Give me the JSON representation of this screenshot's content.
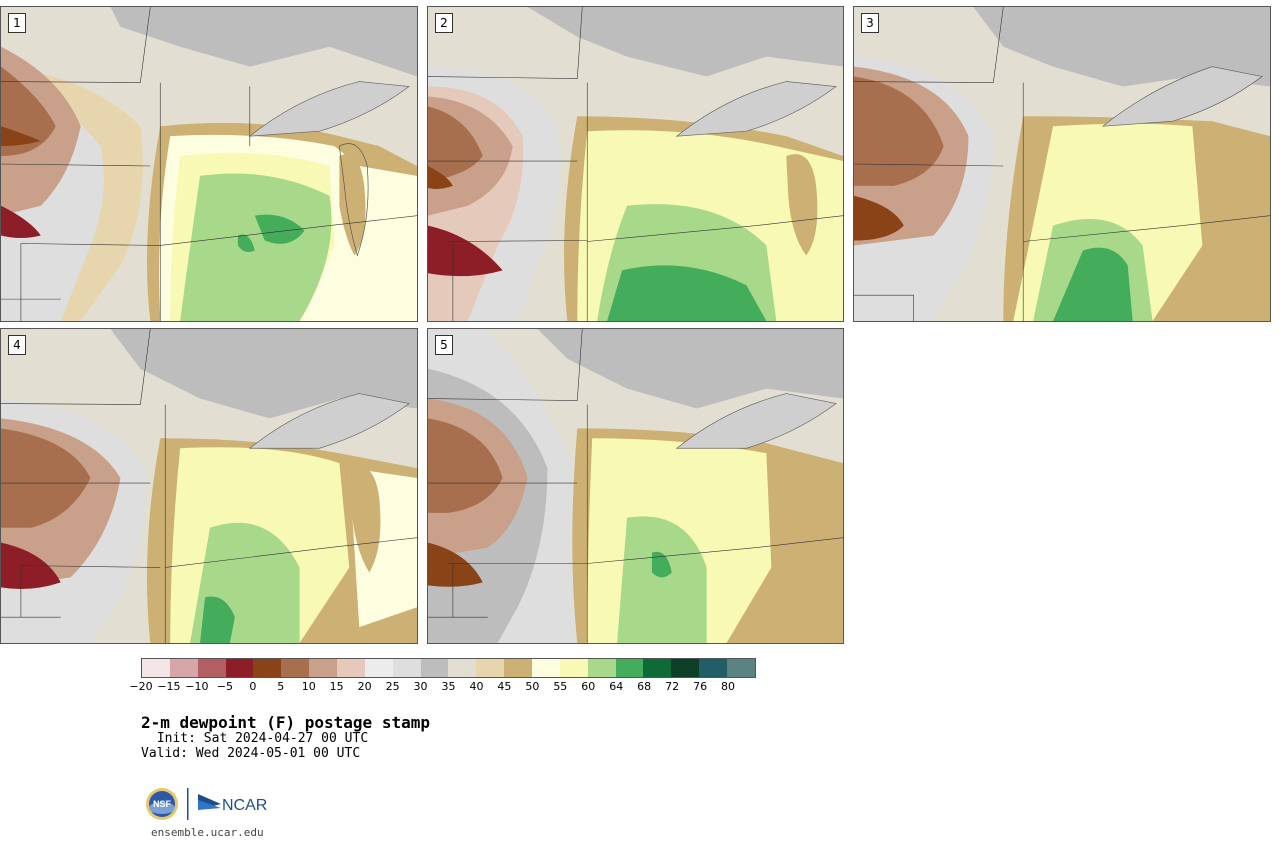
{
  "title": "2-m dewpoint (F) postage stamp",
  "init_line": " Init: Sat 2024-04-27 00 UTC",
  "valid_line": "Valid: Wed 2024-05-01 00 UTC",
  "site": "ensemble.ucar.edu",
  "logos": {
    "nsf": "NSF",
    "ncar": "NCAR"
  },
  "panels": [
    {
      "label": "1"
    },
    {
      "label": "2"
    },
    {
      "label": "3"
    },
    {
      "label": "4"
    },
    {
      "label": "5"
    }
  ],
  "colorbar": {
    "tick_labels": [
      "-20",
      "-15",
      "-10",
      "-5",
      "0",
      "5",
      "10",
      "15",
      "20",
      "25",
      "30",
      "35",
      "40",
      "45",
      "50",
      "55",
      "60",
      "64",
      "68",
      "72",
      "76",
      "80"
    ],
    "colors": [
      "#f2e6e6",
      "#d6a5a8",
      "#b15f63",
      "#8d1d27",
      "#8a4217",
      "#a86f4f",
      "#c9a08a",
      "#e5c9bb",
      "#ececec",
      "#dedede",
      "#bdbdbd",
      "#e2dfd2",
      "#e7d6ad",
      "#cdb174",
      "#fdfde0",
      "#f7f9b4",
      "#a8d98a",
      "#44ad5c",
      "#0e6b37",
      "#0d3f28",
      "#215e68",
      "#5a8382"
    ]
  }
}
